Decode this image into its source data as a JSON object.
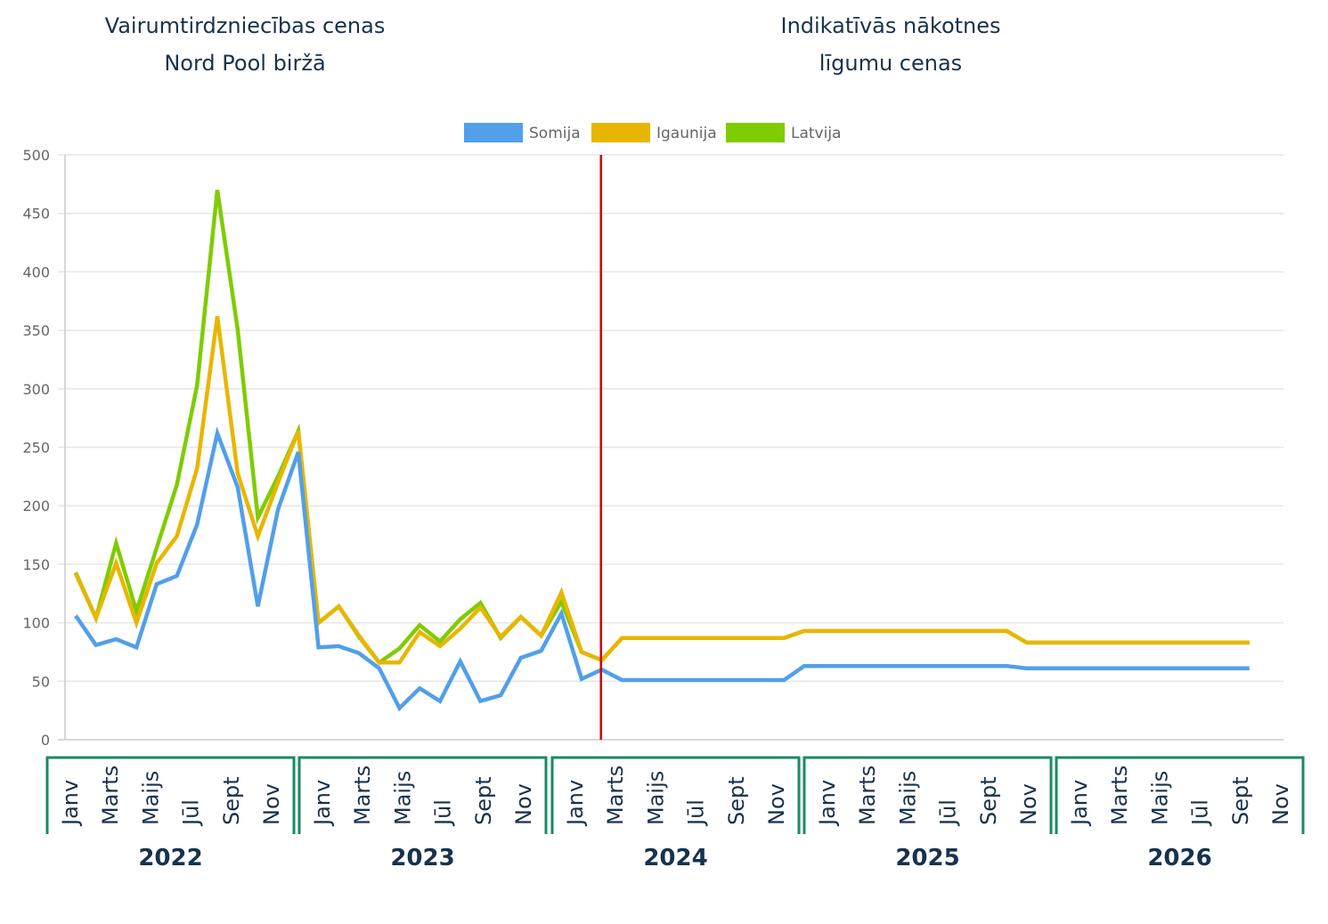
{
  "headings": {
    "left": [
      "Vairumtirdzniecības cenas",
      "Nord Pool biržā"
    ],
    "right": [
      "Indikatīvās nākotnes",
      "līgumu cenas"
    ]
  },
  "colors": {
    "somija": "#529fea",
    "igaunija": "#e8b600",
    "latvija": "#7fcc00",
    "divider": "#d40000",
    "bracket": "#1a8a66",
    "text_dark": "#17324d",
    "grid": "#e6e6e6"
  },
  "chart_data": {
    "type": "line",
    "title": "",
    "xlabel": "",
    "ylabel": "",
    "ylim": [
      0,
      500
    ],
    "yticks": [
      "0",
      "50",
      "100",
      "150",
      "200",
      "250",
      "300",
      "350",
      "400",
      "450",
      "500"
    ],
    "grid": true,
    "legend_position": "top-center",
    "years": [
      "2022",
      "2023",
      "2024",
      "2025",
      "2026"
    ],
    "month_labels": [
      "Janv",
      "Marts",
      "Maijs",
      "Jūl",
      "Sept",
      "Nov"
    ],
    "forecast_start": {
      "year": "2024",
      "month": "Marts"
    },
    "series": [
      {
        "name": "Somija",
        "color": "#529fea",
        "values": [
          106,
          81,
          86,
          79,
          133,
          140,
          184,
          262,
          216,
          114,
          197,
          246,
          79,
          80,
          74,
          61,
          27,
          44,
          33,
          67,
          33,
          38,
          70,
          76,
          108,
          52,
          60,
          51,
          51,
          51,
          51,
          51,
          51,
          51,
          51,
          51,
          63,
          63,
          63,
          63,
          63,
          63,
          63,
          63,
          63,
          63,
          63,
          61,
          61,
          61,
          61,
          61,
          61,
          61,
          61,
          61,
          61,
          61,
          61
        ]
      },
      {
        "name": "Igaunija",
        "color": "#e8b600",
        "values": [
          142,
          104,
          151,
          100,
          151,
          174,
          232,
          362,
          228,
          174,
          220,
          264,
          100,
          114,
          89,
          66,
          66,
          92,
          80,
          95,
          113,
          88,
          105,
          89,
          126,
          75,
          68,
          87,
          87,
          87,
          87,
          87,
          87,
          87,
          87,
          87,
          93,
          93,
          93,
          93,
          93,
          93,
          93,
          93,
          93,
          93,
          93,
          83,
          83,
          83,
          83,
          83,
          83,
          83,
          83,
          83,
          83,
          83,
          83
        ]
      },
      {
        "name": "Latvija",
        "color": "#7fcc00",
        "values": [
          143,
          104,
          168,
          110,
          164,
          218,
          303,
          470,
          351,
          190,
          225,
          264,
          100,
          114,
          88,
          66,
          78,
          98,
          84,
          103,
          117,
          87,
          105,
          89,
          118,
          75,
          68,
          87,
          87,
          87,
          87,
          87,
          87,
          87,
          87,
          87,
          93,
          93,
          93,
          93,
          93,
          93,
          93,
          93,
          93,
          93,
          93,
          83,
          83,
          83,
          83,
          83,
          83,
          83,
          83,
          83,
          83,
          83,
          83
        ]
      }
    ]
  }
}
